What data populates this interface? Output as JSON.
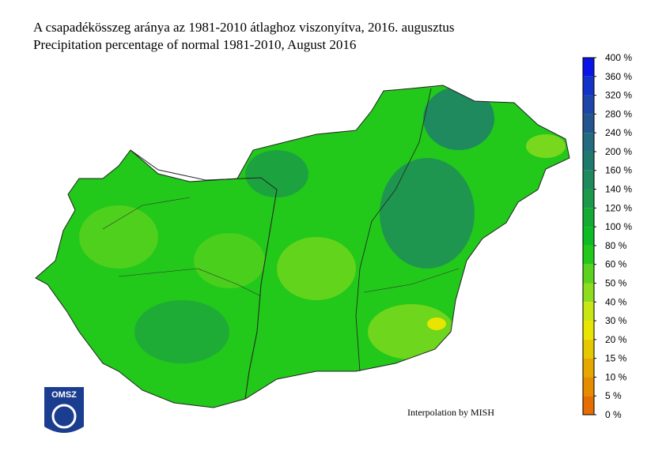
{
  "header": {
    "title_hu": "A csapadékösszeg aránya az 1981-2010 átlaghoz viszonyítva, 2016. augusztus",
    "title_en": "Precipitation percentage of normal 1981-2010, August 2016"
  },
  "legend": {
    "labels": [
      "400 %",
      "360 %",
      "320 %",
      "280 %",
      "240 %",
      "200 %",
      "160 %",
      "140 %",
      "120 %",
      "100 %",
      "80 %",
      "60 %",
      "50 %",
      "40 %",
      "30 %",
      "20 %",
      "15 %",
      "10 %",
      "5 %",
      "0 %"
    ],
    "colors": [
      "#0a14e6",
      "#1432c8",
      "#1e46aa",
      "#24558f",
      "#236b7e",
      "#1f7a6e",
      "#1e8a5e",
      "#1c9a4a",
      "#14aa34",
      "#0cbc22",
      "#22c81a",
      "#5ad21e",
      "#8edc1e",
      "#c8e614",
      "#e8e600",
      "#e6c800",
      "#e6a800",
      "#e68c00",
      "#e66e00"
    ]
  },
  "credit": "Interpolation by MISH",
  "logo": "OMSZ"
}
